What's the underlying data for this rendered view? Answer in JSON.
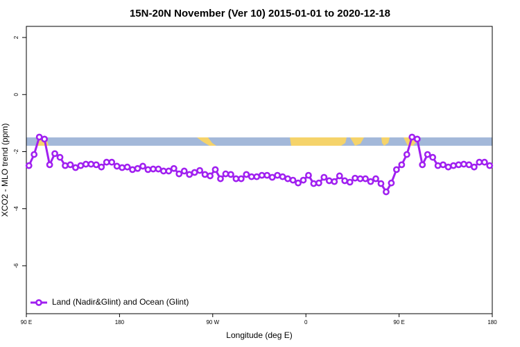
{
  "chart_data": {
    "type": "line",
    "title": "15N-20N November (Ver 10)   2015-01-01 to 2020-12-18",
    "xlabel": "Longitude (deg E)",
    "ylabel": "XCO2 - MLO trend (ppm)",
    "x": [
      92.5,
      97.5,
      102.5,
      107.5,
      112.5,
      117.5,
      122.5,
      127.5,
      132.5,
      137.5,
      142.5,
      147.5,
      152.5,
      157.5,
      162.5,
      167.5,
      172.5,
      177.5,
      182.5,
      187.5,
      192.5,
      197.5,
      202.5,
      207.5,
      212.5,
      217.5,
      222.5,
      227.5,
      232.5,
      237.5,
      242.5,
      247.5,
      252.5,
      257.5,
      262.5,
      267.5,
      272.5,
      277.5,
      282.5,
      287.5,
      292.5,
      297.5,
      302.5,
      307.5,
      312.5,
      317.5,
      322.5,
      327.5,
      332.5,
      337.5,
      342.5,
      347.5,
      352.5,
      357.5,
      362.5,
      367.5,
      372.5,
      377.5,
      382.5,
      387.5,
      392.5,
      397.5,
      402.5,
      407.5,
      412.5,
      417.5,
      422.5,
      427.5,
      432.5,
      437.5,
      442.5,
      447.5,
      452.5,
      457.5,
      462.5,
      467.5,
      472.5,
      477.5,
      482.5,
      487.5,
      492.5,
      497.5,
      502.5,
      507.5,
      512.5,
      517.5,
      522.5,
      527.5,
      532.5,
      537.5
    ],
    "series": [
      {
        "name": "Land (Nadir&Glint) and Ocean (Glint)",
        "color": "#a020f0",
        "values": [
          -2.49,
          -2.1,
          -1.49,
          -1.56,
          -2.46,
          -2.07,
          -2.2,
          -2.49,
          -2.46,
          -2.56,
          -2.49,
          -2.44,
          -2.44,
          -2.46,
          -2.54,
          -2.37,
          -2.37,
          -2.51,
          -2.56,
          -2.54,
          -2.63,
          -2.59,
          -2.51,
          -2.63,
          -2.61,
          -2.61,
          -2.68,
          -2.68,
          -2.59,
          -2.78,
          -2.68,
          -2.8,
          -2.73,
          -2.66,
          -2.8,
          -2.85,
          -2.63,
          -2.95,
          -2.78,
          -2.8,
          -2.95,
          -2.95,
          -2.8,
          -2.88,
          -2.88,
          -2.83,
          -2.83,
          -2.9,
          -2.83,
          -2.88,
          -2.95,
          -3.0,
          -3.1,
          -3.0,
          -2.83,
          -3.12,
          -3.1,
          -2.9,
          -3.02,
          -3.05,
          -2.85,
          -3.02,
          -3.07,
          -2.93,
          -2.95,
          -2.95,
          -3.05,
          -2.95,
          -3.12,
          -3.41,
          -3.1,
          -2.63,
          -2.46,
          -2.1,
          -1.49,
          -1.56,
          -2.46,
          -2.1,
          -2.2,
          -2.49,
          -2.46,
          -2.54,
          -2.49,
          -2.46,
          -2.44,
          -2.46,
          -2.54,
          -2.37,
          -2.37,
          -2.49
        ]
      }
    ],
    "xlim": [
      90,
      540
    ],
    "xticks": [
      {
        "value": 90,
        "label": "90 E"
      },
      180,
      {
        "value": 270,
        "label": "90 W"
      },
      {
        "value": 360,
        "label": "0"
      },
      {
        "value": 450,
        "label": "90 E"
      },
      {
        "value": 540,
        "label": "180"
      }
    ],
    "ylim": [
      -7.68,
      2.39
    ],
    "yticks": [
      -6,
      -4,
      -2,
      0,
      2
    ],
    "legend": "bottom left",
    "grid": false
  }
}
